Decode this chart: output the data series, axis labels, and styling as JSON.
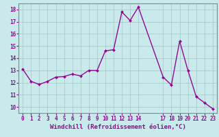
{
  "x": [
    0,
    1,
    2,
    3,
    4,
    5,
    6,
    7,
    8,
    9,
    10,
    11,
    12,
    13,
    14,
    17,
    18,
    19,
    20,
    21,
    22,
    23
  ],
  "y": [
    13.1,
    12.1,
    11.85,
    12.1,
    12.45,
    12.5,
    12.7,
    12.55,
    13.0,
    13.0,
    14.6,
    14.7,
    17.8,
    17.1,
    18.2,
    12.45,
    11.8,
    15.4,
    13.0,
    10.85,
    10.35,
    9.85
  ],
  "line_color": "#990099",
  "marker_color": "#990099",
  "bg_color": "#c8eaea",
  "grid_color": "#aacccc",
  "xlabel": "Windchill (Refroidissement éolien,°C)",
  "xlim": [
    -0.5,
    23.5
  ],
  "ylim": [
    9.5,
    18.5
  ],
  "xticks": [
    0,
    1,
    2,
    3,
    4,
    5,
    6,
    7,
    8,
    9,
    10,
    11,
    12,
    13,
    14,
    17,
    18,
    19,
    20,
    21,
    22,
    23
  ],
  "yticks": [
    10,
    11,
    12,
    13,
    14,
    15,
    16,
    17,
    18
  ],
  "tick_fontsize": 5.5,
  "xlabel_fontsize": 6.5,
  "line_width": 1.0,
  "marker_size": 2.0
}
